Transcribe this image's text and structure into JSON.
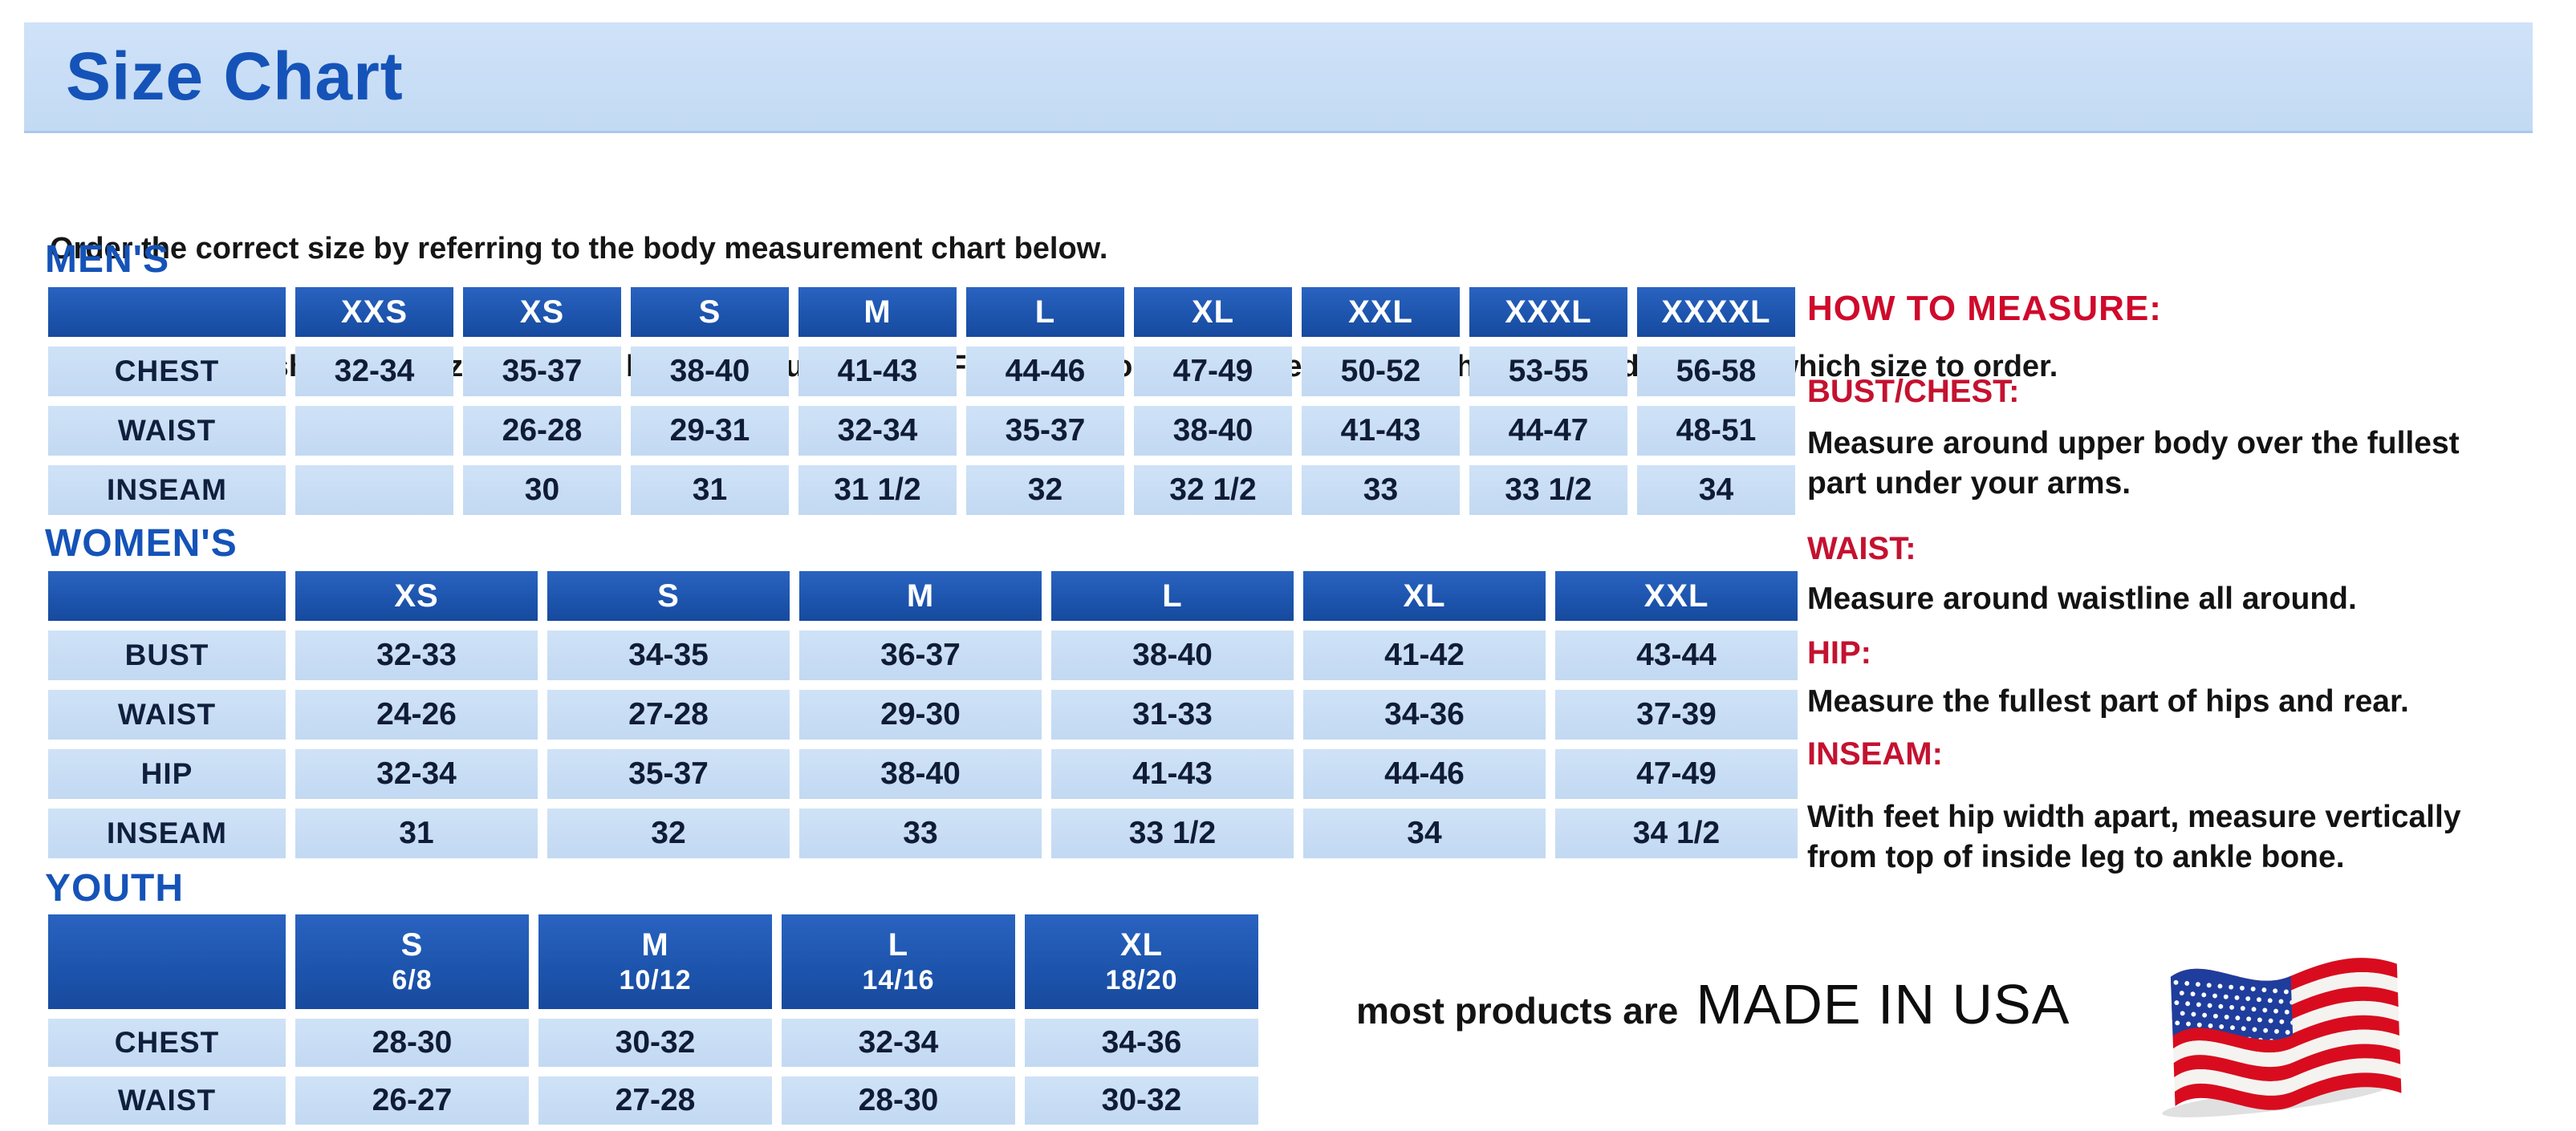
{
  "colors": {
    "accent_blue": "#1553b8",
    "table_header_blue": "#1d55ae",
    "cell_blue": "#c6ddf5",
    "banner_blue": "#c9def6",
    "heading_red": "#cf0a2c",
    "label_red": "#c41230"
  },
  "banner": {
    "title": "Size Chart"
  },
  "intro": {
    "line1": "Order the correct size by referring to the body measurement chart below.",
    "line2": "Measurements shown on size chart are body measurements.  Find your body measurements on the chart to determine which size to order."
  },
  "sections": {
    "mens": {
      "heading": "MEN'S",
      "columns": [
        "",
        "XXS",
        "XS",
        "S",
        "M",
        "L",
        "XL",
        "XXL",
        "XXXL",
        "XXXXL"
      ],
      "rows": [
        {
          "label": "CHEST",
          "values": [
            "32-34",
            "35-37",
            "38-40",
            "41-43",
            "44-46",
            "47-49",
            "50-52",
            "53-55",
            "56-58"
          ]
        },
        {
          "label": "WAIST",
          "values": [
            "",
            "26-28",
            "29-31",
            "32-34",
            "35-37",
            "38-40",
            "41-43",
            "44-47",
            "48-51"
          ]
        },
        {
          "label": "INSEAM",
          "values": [
            "",
            "30",
            "31",
            "31 1/2",
            "32",
            "32 1/2",
            "33",
            "33 1/2",
            "34"
          ]
        }
      ]
    },
    "womens": {
      "heading": "WOMEN'S",
      "columns": [
        "",
        "XS",
        "S",
        "M",
        "L",
        "XL",
        "XXL"
      ],
      "rows": [
        {
          "label": "BUST",
          "values": [
            "32-33",
            "34-35",
            "36-37",
            "38-40",
            "41-42",
            "43-44"
          ]
        },
        {
          "label": "WAIST",
          "values": [
            "24-26",
            "27-28",
            "29-30",
            "31-33",
            "34-36",
            "37-39"
          ]
        },
        {
          "label": "HIP",
          "values": [
            "32-34",
            "35-37",
            "38-40",
            "41-43",
            "44-46",
            "47-49"
          ]
        },
        {
          "label": "INSEAM",
          "values": [
            "31",
            "32",
            "33",
            "33 1/2",
            "34",
            "34 1/2"
          ]
        }
      ]
    },
    "youth": {
      "heading": "YOUTH",
      "columns": [
        "",
        {
          "size": "S",
          "range": "6/8"
        },
        {
          "size": "M",
          "range": "10/12"
        },
        {
          "size": "L",
          "range": "14/16"
        },
        {
          "size": "XL",
          "range": "18/20"
        }
      ],
      "rows": [
        {
          "label": "CHEST",
          "values": [
            "28-30",
            "30-32",
            "32-34",
            "34-36"
          ]
        },
        {
          "label": "WAIST",
          "values": [
            "26-27",
            "27-28",
            "28-30",
            "30-32"
          ]
        }
      ]
    }
  },
  "how_to_measure": {
    "heading": "HOW TO MEASURE:",
    "items": [
      {
        "label": "BUST/CHEST:",
        "text": "Measure around upper body over the fullest part under your arms."
      },
      {
        "label": "WAIST:",
        "text": "Measure around waistline all around."
      },
      {
        "label": "HIP:",
        "text": "Measure the fullest part of hips and rear."
      },
      {
        "label": "INSEAM:",
        "text": "With feet hip width apart, measure vertically from top of inside leg to ankle bone."
      }
    ]
  },
  "footer": {
    "prefix": "most products are",
    "emphasis": "MADE IN USA",
    "flag_icon": "us-flag-icon"
  }
}
